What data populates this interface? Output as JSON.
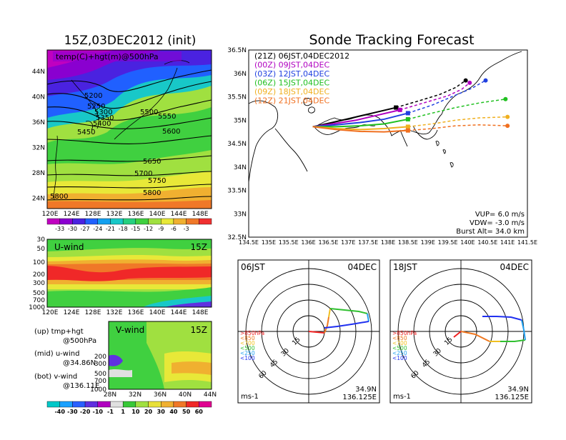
{
  "left": {
    "title": "15Z,03DEC2012 (init)",
    "map_label": "temp(C)+hgt(m)@500hPa",
    "map_lat_labels": [
      "44N",
      "40N",
      "36N",
      "32N",
      "28N",
      "24N"
    ],
    "map_lon_labels": [
      "120E",
      "124E",
      "128E",
      "132E",
      "136E",
      "140E",
      "144E",
      "148E"
    ],
    "contour_labels": [
      "5200",
      "5250",
      "5300",
      "5350",
      "5400",
      "5450",
      "5500",
      "5550",
      "5600",
      "5650",
      "5700",
      "5750",
      "5800",
      "5800"
    ],
    "temp_colorbar": {
      "labels": [
        "-33",
        "-30",
        "-27",
        "-24",
        "-21",
        "-18",
        "-15",
        "-12",
        "-9",
        "-6",
        "-3"
      ],
      "colors": [
        "#c000c0",
        "#8a00d0",
        "#4a22e0",
        "#2060ff",
        "#13a0f0",
        "#18c8c8",
        "#25d080",
        "#40d040",
        "#a0e040",
        "#e8e838",
        "#f0b030",
        "#f07828",
        "#f03030"
      ]
    },
    "uwind": {
      "label": "U-wind",
      "time": "15Z",
      "y_labels": [
        "30",
        "50",
        "100",
        "200",
        "300",
        "500",
        "700",
        "1000"
      ],
      "x_labels": [
        "120E",
        "124E",
        "128E",
        "132E",
        "136E",
        "140E",
        "144E",
        "148E"
      ]
    },
    "vwind": {
      "label": "V-wind",
      "time": "15Z",
      "y_labels": [
        "200",
        "300",
        "500",
        "700",
        "1000"
      ],
      "x_labels": [
        "28N",
        "32N",
        "36N",
        "40N",
        "44N"
      ]
    },
    "notes": [
      [
        "(up) tmp+hgt",
        "@500hPa"
      ],
      [
        "(mid) u-wind",
        "@34.86N"
      ],
      [
        "(bot) v-wind",
        "@136.11E"
      ]
    ],
    "wind_colorbar": {
      "labels": [
        "-40",
        "-30",
        "-20",
        "-10",
        "-1",
        "1",
        "10",
        "20",
        "30",
        "40",
        "50",
        "60"
      ],
      "colors": [
        "#00c8c8",
        "#1aa0ff",
        "#2a60ff",
        "#6030e0",
        "#b000c0",
        "#e0e0e0",
        "#38c838",
        "#a0e040",
        "#e8e038",
        "#f0b030",
        "#f07828",
        "#f02828",
        "#e00090"
      ]
    }
  },
  "main_title": "Sonde Tracking Forecast",
  "track": {
    "lat_labels": [
      "36.5N",
      "36N",
      "35.5N",
      "35N",
      "34.5N",
      "34N",
      "33.5N",
      "33N",
      "32.5N"
    ],
    "lon_labels": [
      "134.5E",
      "135E",
      "135.5E",
      "136E",
      "136.5E",
      "137E",
      "137.5E",
      "138E",
      "138.5E",
      "139E",
      "139.5E",
      "140E",
      "140.5E",
      "141E",
      "141.5E"
    ],
    "legend": [
      {
        "text": "(21Z)  06JST,04DEC2012",
        "color": "#000000"
      },
      {
        "text": "(00Z)  09JST,04DEC",
        "color": "#b000c0"
      },
      {
        "text": "(03Z)  12JST,04DEC",
        "color": "#2040e0"
      },
      {
        "text": "(06Z)  15JST,04DEC",
        "color": "#20c020"
      },
      {
        "text": "(09Z)  18JST,04DEC",
        "color": "#f0b020"
      },
      {
        "text": "(12Z)  21JST,04DEC",
        "color": "#f07020"
      }
    ],
    "params": [
      "VUP=  6.0  m/s",
      "VDW=  -3.0  m/s",
      "Burst Alt=  34.0  km"
    ]
  },
  "chart_data": [
    {
      "type": "line",
      "title": "Sonde Tracking Forecast",
      "xlim": [
        134.5,
        141.5
      ],
      "ylim": [
        32.5,
        36.5
      ],
      "series": [
        {
          "name": "(21Z) 06JST,04DEC2012",
          "x": [
            136.11,
            136.6,
            137.1,
            137.6,
            138.2,
            138.8,
            139.3,
            139.7,
            139.95
          ],
          "y": [
            34.86,
            34.95,
            35.05,
            35.15,
            35.27,
            35.42,
            35.55,
            35.7,
            35.85
          ]
        },
        {
          "name": "(00Z) 09JST,04DEC",
          "x": [
            136.11,
            136.6,
            137.2,
            137.7,
            138.3,
            138.9,
            139.5,
            139.85,
            140.05
          ],
          "y": [
            34.86,
            34.92,
            35.0,
            35.1,
            35.22,
            35.37,
            35.52,
            35.66,
            35.8
          ]
        },
        {
          "name": "(03Z) 12JST,04DEC",
          "x": [
            136.11,
            136.7,
            137.3,
            137.9,
            138.5,
            139.1,
            139.6,
            140.1,
            140.45
          ],
          "y": [
            34.86,
            34.9,
            34.95,
            35.02,
            35.15,
            35.32,
            35.5,
            35.68,
            35.85
          ]
        },
        {
          "name": "(06Z) 15JST,04DEC",
          "x": [
            136.11,
            136.7,
            137.3,
            137.9,
            138.5,
            139.1,
            139.7,
            140.3,
            140.95
          ],
          "y": [
            34.86,
            34.86,
            34.88,
            34.92,
            35.02,
            35.15,
            35.27,
            35.37,
            35.45
          ]
        },
        {
          "name": "(09Z) 18JST,04DEC",
          "x": [
            136.11,
            136.7,
            137.3,
            137.9,
            138.5,
            139.1,
            139.7,
            140.3,
            141.0
          ],
          "y": [
            34.86,
            34.82,
            34.8,
            34.82,
            34.86,
            34.92,
            35.0,
            35.05,
            35.07
          ]
        },
        {
          "name": "(12Z) 21JST,04DEC",
          "x": [
            136.11,
            136.7,
            137.3,
            137.9,
            138.5,
            139.1,
            139.7,
            140.3,
            141.0
          ],
          "y": [
            34.86,
            34.8,
            34.76,
            34.75,
            34.78,
            34.82,
            34.88,
            34.9,
            34.88
          ]
        }
      ]
    },
    {
      "type": "scatter",
      "title": "06JST 04DEC",
      "rings": [
        15,
        30,
        45,
        60
      ],
      "pressure_legend": [
        ">850hPa",
        "<850",
        "<700",
        "<500",
        "<250",
        "<100"
      ],
      "pressure_colors": [
        "#f02020",
        "#f07820",
        "#f0c020",
        "#30c030",
        "#20a0f0",
        "#2030f0"
      ],
      "location": [
        "34.9N",
        "136.125E"
      ],
      "unit": "ms-1"
    },
    {
      "type": "scatter",
      "title": "18JST 04DEC",
      "rings": [
        15,
        30,
        45,
        60
      ],
      "pressure_legend": [
        ">850hPa",
        "<850",
        "<700",
        "<500",
        "<250",
        "<100"
      ],
      "pressure_colors": [
        "#f02020",
        "#f07820",
        "#f0c020",
        "#30c030",
        "#20a0f0",
        "#2030f0"
      ],
      "location": [
        "34.9N",
        "136.125E"
      ],
      "unit": "ms-1"
    }
  ]
}
